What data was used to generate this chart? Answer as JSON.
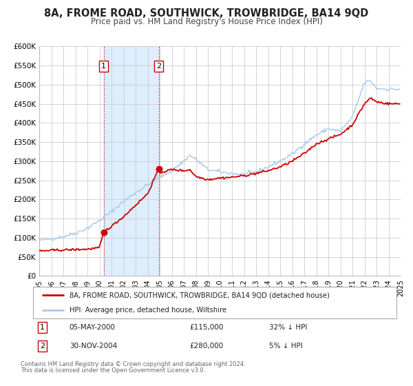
{
  "title": "8A, FROME ROAD, SOUTHWICK, TROWBRIDGE, BA14 9QD",
  "subtitle": "Price paid vs. HM Land Registry's House Price Index (HPI)",
  "title_fontsize": 10.5,
  "subtitle_fontsize": 8.5,
  "background_color": "#ffffff",
  "plot_bg_color": "#ffffff",
  "grid_color": "#cccccc",
  "hpi_color": "#a8c8e8",
  "price_color": "#cc0000",
  "shade_color": "#ddeeff",
  "xmin": 1995,
  "xmax": 2025,
  "ymin": 0,
  "ymax": 600000,
  "yticks": [
    0,
    50000,
    100000,
    150000,
    200000,
    250000,
    300000,
    350000,
    400000,
    450000,
    500000,
    550000,
    600000
  ],
  "ytick_labels": [
    "£0",
    "£50K",
    "£100K",
    "£150K",
    "£200K",
    "£250K",
    "£300K",
    "£350K",
    "£400K",
    "£450K",
    "£500K",
    "£550K",
    "£600K"
  ],
  "xtick_years": [
    1995,
    1996,
    1997,
    1998,
    1999,
    2000,
    2001,
    2002,
    2003,
    2004,
    2005,
    2006,
    2007,
    2008,
    2009,
    2010,
    2011,
    2012,
    2013,
    2014,
    2015,
    2016,
    2017,
    2018,
    2019,
    2020,
    2021,
    2022,
    2023,
    2024,
    2025
  ],
  "legend_entries": [
    "8A, FROME ROAD, SOUTHWICK, TROWBRIDGE, BA14 9QD (detached house)",
    "HPI: Average price, detached house, Wiltshire"
  ],
  "sale1_label": "1",
  "sale1_date": "05-MAY-2000",
  "sale1_price": "£115,000",
  "sale1_hpi": "32% ↓ HPI",
  "sale1_x": 2000.35,
  "sale1_y": 115000,
  "sale2_label": "2",
  "sale2_date": "30-NOV-2004",
  "sale2_price": "£280,000",
  "sale2_hpi": "5% ↓ HPI",
  "sale2_x": 2004.92,
  "sale2_y": 280000,
  "shade_x1": 2000.35,
  "shade_x2": 2004.92,
  "vline1_x": 2000.35,
  "vline2_x": 2004.92,
  "footer_line1": "Contains HM Land Registry data © Crown copyright and database right 2024.",
  "footer_line2": "This data is licensed under the Open Government Licence v3.0."
}
